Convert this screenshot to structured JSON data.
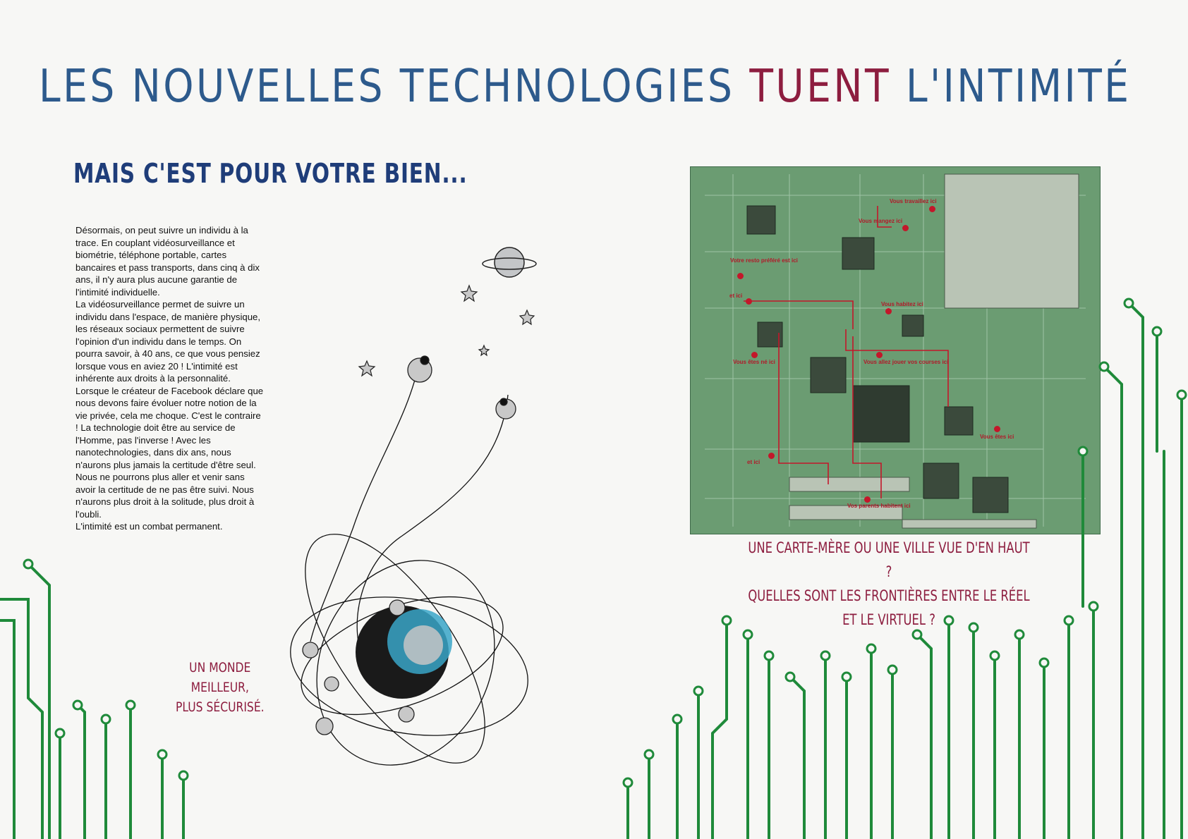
{
  "title": {
    "part1": "LES NOUVELLES TECHNOLOGIES",
    "part2": "TUENT",
    "part3": "L'INTIMITÉ"
  },
  "subtitle": "MAIS C'EST POUR VOTRE BIEN...",
  "body_paragraphs": [
    "Désormais, on peut suivre un individu à la trace. En couplant vidéosurveillance et biométrie, téléphone portable, cartes bancaires et pass transports, dans cinq à dix ans, il n'y aura plus aucune garantie de l'intimité individuelle.",
    "La vidéosurveillance permet de suivre un individu dans l'espace, de manière physique, les réseaux sociaux permettent de suivre l'opinion d'un individu dans le temps. On pourra savoir, à 40 ans, ce que vous pensiez lorsque vous en aviez 20 ! L'intimité est inhérente aux droits à la personnalité.",
    "Lorsque le créateur de Facebook déclare que nous devons faire évoluer notre notion de la vie privée, cela me choque. C'est le contraire ! La technologie doit être au service de l'Homme, pas l'inverse ! Avec les nanotechnologies, dans dix ans, nous n'aurons plus jamais la certitude d'être seul. Nous ne pourrons plus aller et venir sans avoir la certitude de ne pas être suivi. Nous n'aurons plus droit à la solitude, plus droit à l'oubli.",
    "L'intimité est un combat permanent."
  ],
  "caption_left": {
    "line1": "UN MONDE MEILLEUR,",
    "line2": "PLUS SÉCURISÉ."
  },
  "caption_right": {
    "line1": "UNE CARTE-MÈRE OU UNE VILLE VUE D'EN HAUT ?",
    "line2": "QUELLES SONT LES FRONTIÈRES ENTRE LE RÉEL ET LE VIRTUEL ?"
  },
  "board_labels": [
    "Vous travaillez ici",
    "Vous mangez ici",
    "Votre resto préféré est ici",
    "et ici",
    "Vous habitez ici",
    "Vous allez jouer vos courses ici",
    "Vous êtes né ici",
    "Vous êtes ici",
    "et ici",
    "Vos parents habitent ici"
  ],
  "colors": {
    "title_blue": "#2d5a8c",
    "title_red": "#8d1d3f",
    "circuit_green": "#1f8a3a",
    "board_green": "#6b9c72"
  }
}
